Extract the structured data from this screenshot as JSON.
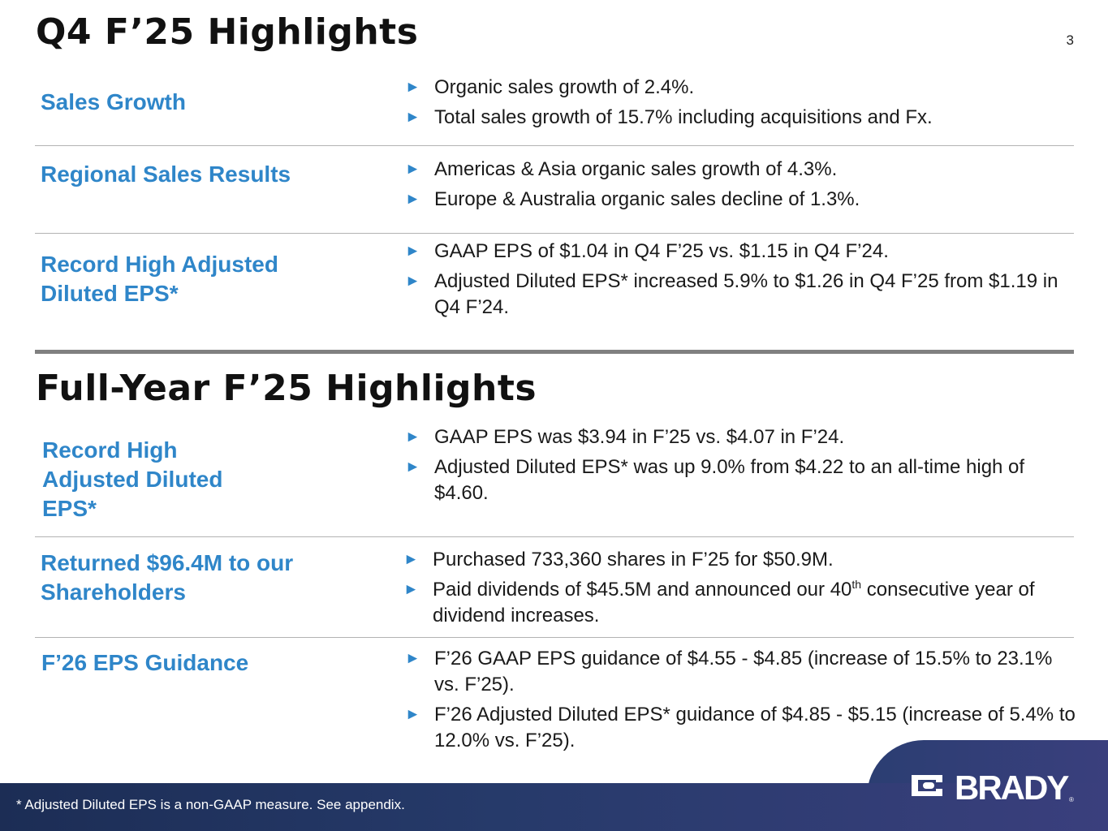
{
  "page_number": "3",
  "q4": {
    "title": "Q4 F’25 Highlights",
    "rows": [
      {
        "label": "Sales Growth",
        "bullets": [
          "Organic sales growth of 2.4%.",
          "Total sales growth of 15.7% including acquisitions and Fx."
        ]
      },
      {
        "label": "Regional Sales Results",
        "bullets": [
          "Americas & Asia organic sales growth of 4.3%.",
          "Europe & Australia organic sales decline of 1.3%."
        ]
      },
      {
        "label": "Record High Adjusted\nDiluted EPS*",
        "bullets": [
          "GAAP EPS of $1.04 in Q4 F’25 vs. $1.15 in Q4 F’24.",
          "Adjusted Diluted EPS* increased 5.9% to $1.26 in Q4 F’25 from $1.19 in Q4 F’24."
        ]
      }
    ]
  },
  "fy": {
    "title": "Full-Year F’25 Highlights",
    "rows": [
      {
        "label": "Record High\nAdjusted Diluted\nEPS*",
        "bullets": [
          "GAAP EPS was $3.94 in F’25 vs. $4.07 in F’24.",
          "Adjusted Diluted EPS* was up 9.0% from $4.22 to an all-time high of $4.60."
        ]
      },
      {
        "label": "Returned $96.4M to our\nShareholders",
        "bullets": [
          "Purchased 733,360 shares in F’25 for $50.9M.",
          {
            "before": "Paid dividends of $45.5M and announced our 40",
            "sup": "th",
            "after": " consecutive year of dividend increases."
          }
        ]
      },
      {
        "label": "F’26 EPS Guidance",
        "bullets": [
          "F’26 GAAP EPS guidance of $4.55 - $4.85 (increase of 15.5% to 23.1% vs. F’25).",
          "F’26 Adjusted Diluted EPS* guidance of $4.85 - $5.15 (increase of 5.4% to 12.0% vs. F’25)."
        ]
      }
    ]
  },
  "footer": {
    "footnote": "*   Adjusted Diluted EPS is a non-GAAP measure.  See appendix.",
    "logo_text": "BRADY",
    "colors": {
      "accent": "#2f86c9",
      "footer": "#263a6a"
    }
  }
}
